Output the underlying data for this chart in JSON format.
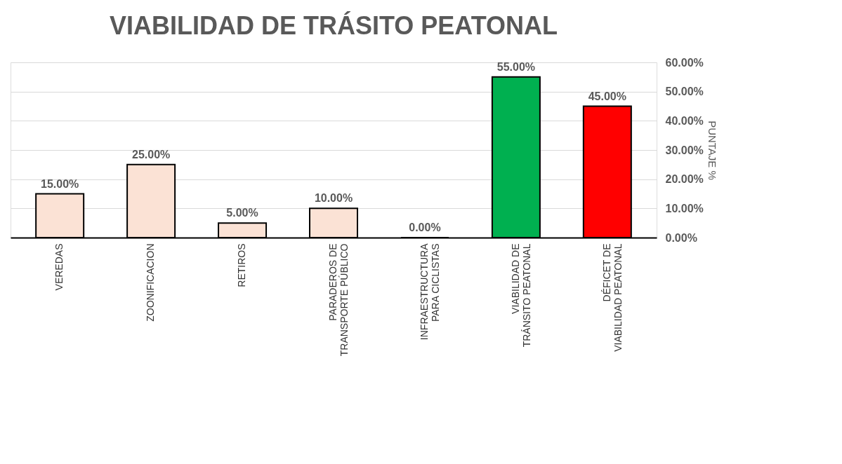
{
  "chart_data": {
    "type": "bar",
    "title": "VIABILIDAD DE TRÁSITO PEATONAL",
    "ylabel": "PUNTAJE %",
    "categories": [
      "VEREDAS",
      "ZOONIFICACION",
      "RETIROS",
      "PARADEROS DE TRANSPORTE PÚBLICO",
      "INFRAESTRUCTURA PARA CICLISTAS",
      "VIABILIDAD DE TRÁNSITO PEATONAL",
      "DÉFICET DE VIABILIDAD PEATONAL"
    ],
    "values": [
      15,
      25,
      5,
      10,
      0,
      55,
      45
    ],
    "colors": [
      "#fbe2d5",
      "#fbe2d5",
      "#fbe2d5",
      "#fbe2d5",
      "#fbe2d5",
      "#00b050",
      "#ff0000"
    ],
    "value_labels": [
      "15.00%",
      "25.00%",
      "5.00%",
      "10.00%",
      "0.00%",
      "55.00%",
      "45.00%"
    ],
    "ylim": [
      0,
      60
    ],
    "yticks": [
      {
        "value": 0,
        "label": "0.00%"
      },
      {
        "value": 10,
        "label": "10.00%"
      },
      {
        "value": 20,
        "label": "20.00%"
      },
      {
        "value": 30,
        "label": "30.00%"
      },
      {
        "value": 40,
        "label": "40.00%"
      },
      {
        "value": 50,
        "label": "50.00%"
      },
      {
        "value": 60,
        "label": "60.00%"
      }
    ],
    "grid": "y"
  }
}
